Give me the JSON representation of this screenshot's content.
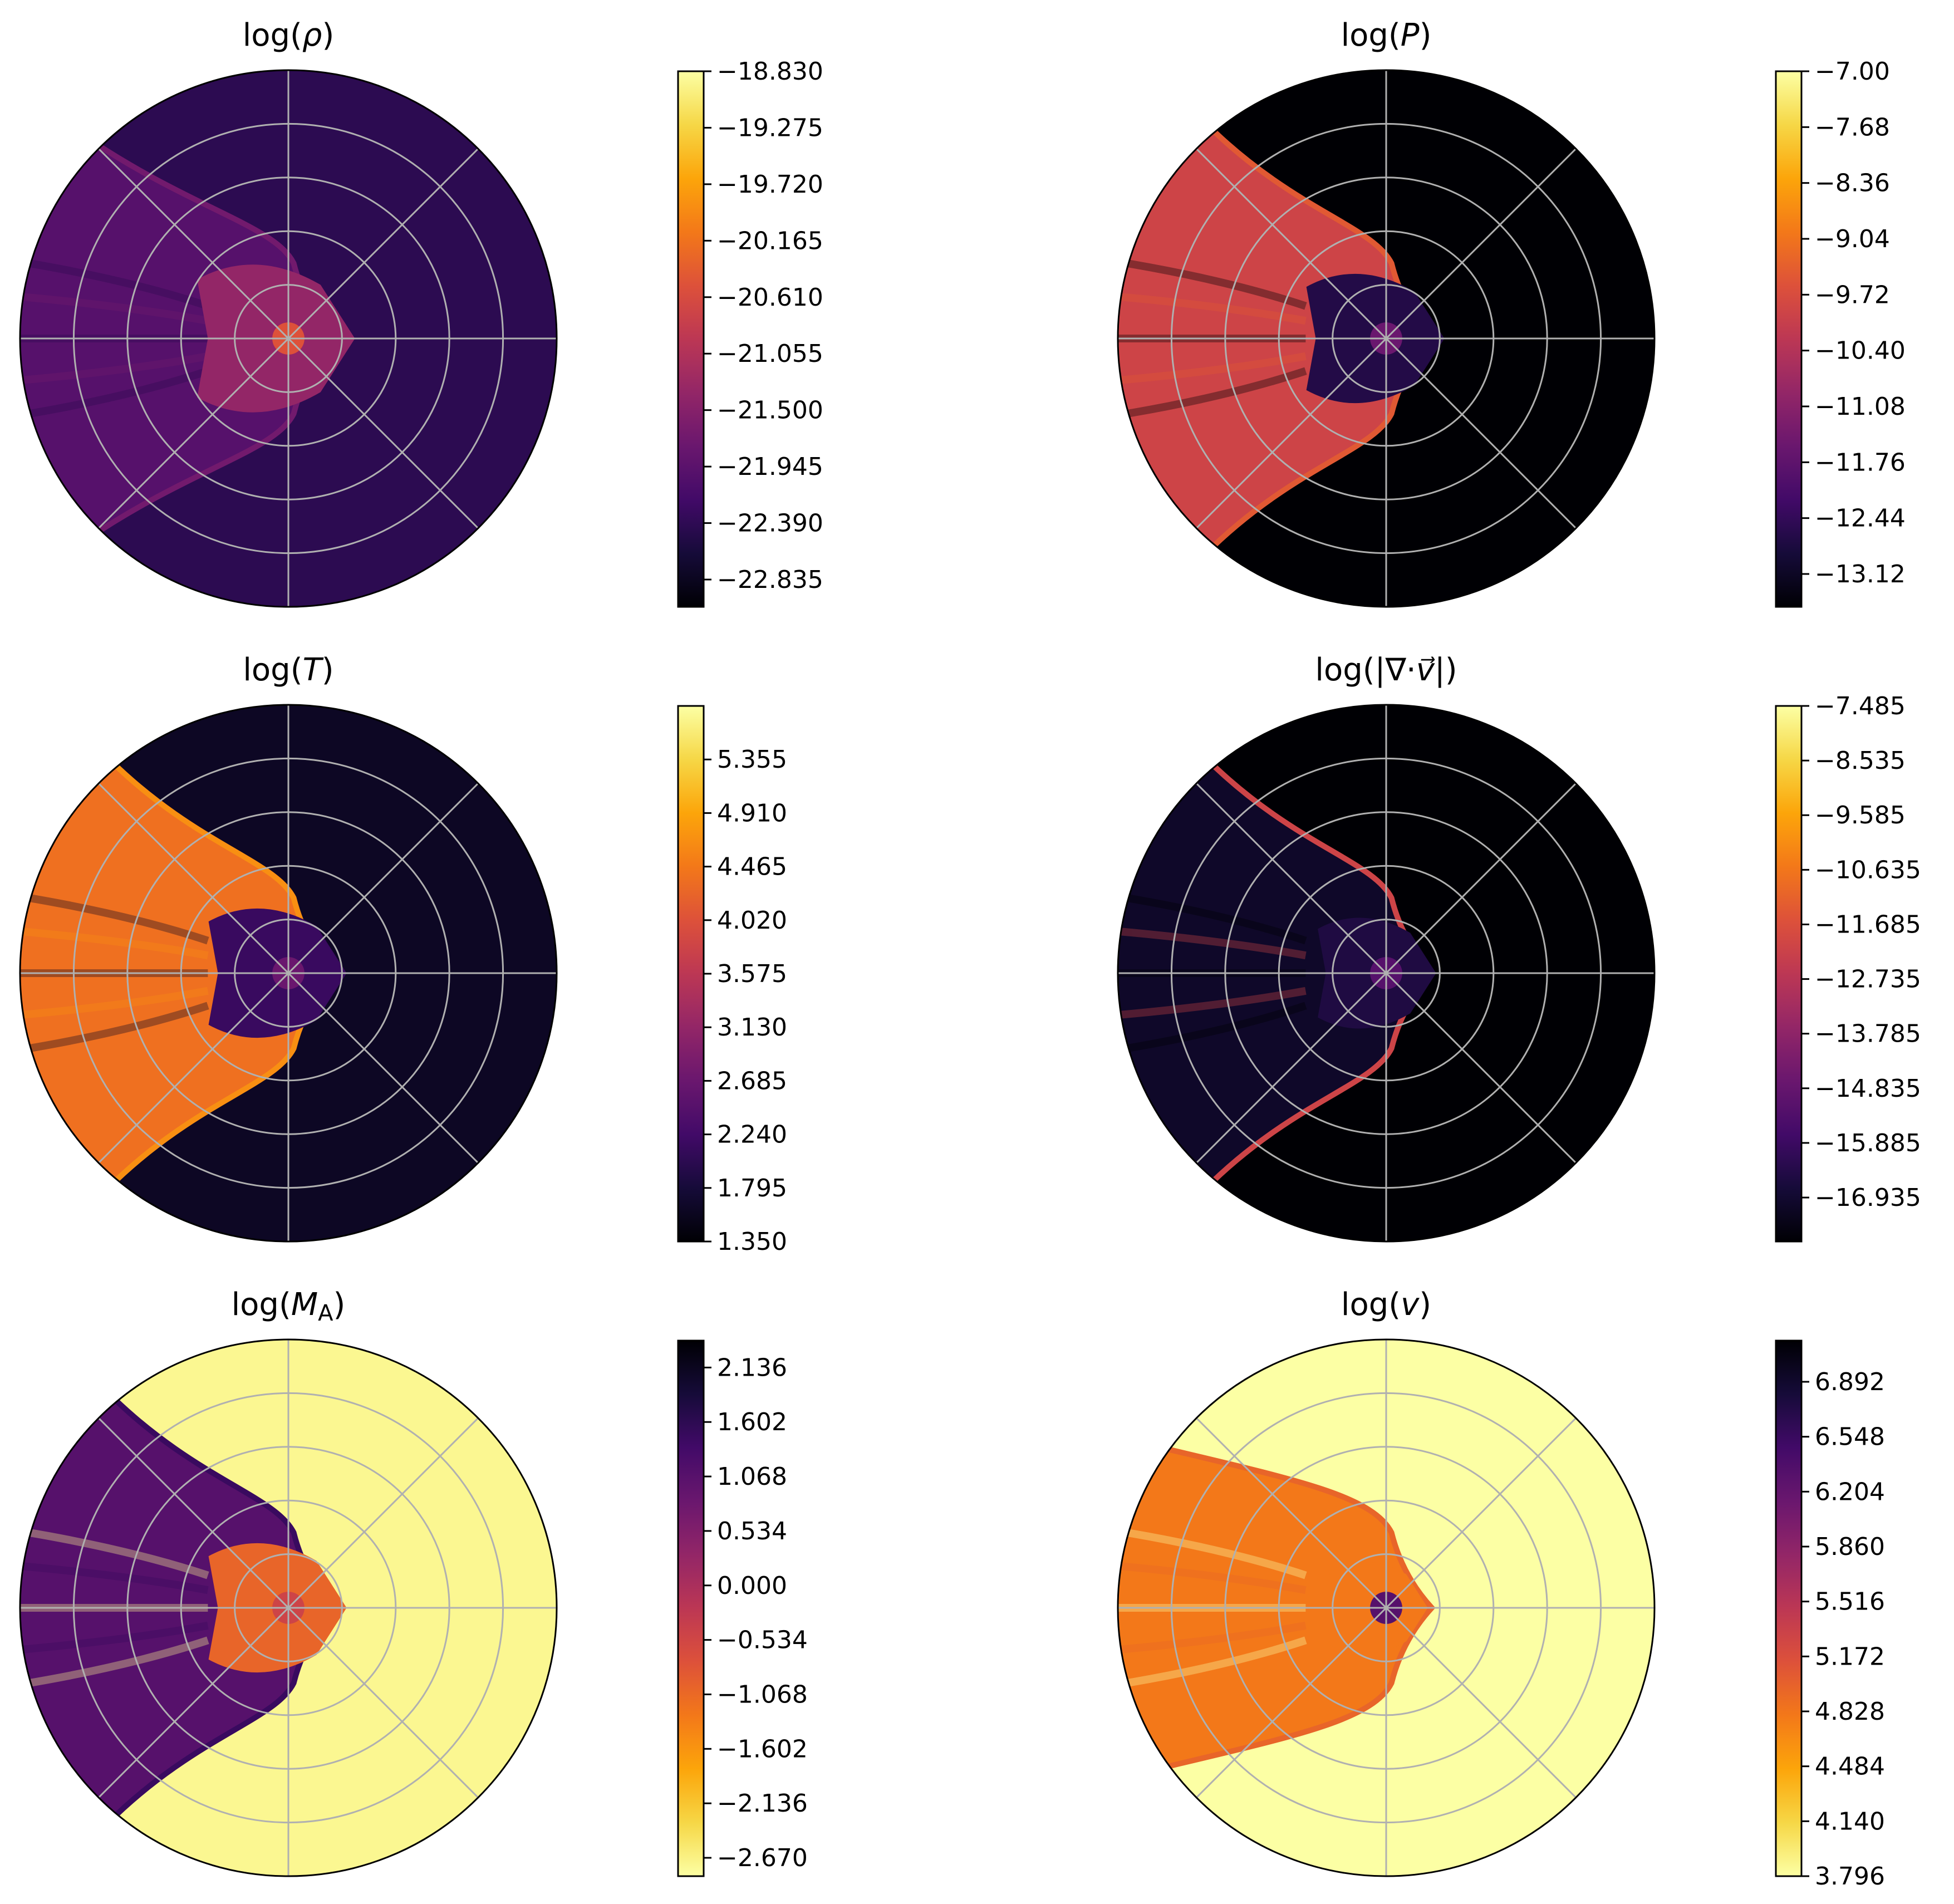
{
  "chart_data": [
    {
      "type": "heatmap",
      "projection": "polar",
      "title": "log(ρ)",
      "title_parts": {
        "pre": "log(",
        "sym": "ρ",
        "post": ")"
      },
      "colormap": "inferno",
      "colorbar": {
        "vmin": -23.05,
        "vmax": -18.83,
        "ticks": [
          -18.83,
          -19.275,
          -19.72,
          -20.165,
          -20.61,
          -21.055,
          -21.5,
          -21.945,
          -22.39,
          -22.835
        ],
        "tick_labels": [
          "−18.830",
          "−19.275",
          "−19.720",
          "−20.165",
          "−20.610",
          "−21.055",
          "−21.500",
          "−21.945",
          "−22.390",
          "−22.835"
        ],
        "reversed": false
      },
      "structure": {
        "background": 0.15,
        "cone": 0.25,
        "shell": 0.32,
        "cavity": 0.4,
        "core": 0.6,
        "halfangle_deg": 45,
        "nose": 0.17,
        "cavity_size": 0.4
      }
    },
    {
      "type": "heatmap",
      "projection": "polar",
      "title": "log(P)",
      "title_parts": {
        "pre": "log(",
        "sym": "P",
        "post": ")"
      },
      "colormap": "inferno",
      "colorbar": {
        "vmin": -13.52,
        "vmax": -7.0,
        "ticks": [
          -7.0,
          -7.68,
          -8.36,
          -9.04,
          -9.72,
          -10.4,
          -11.08,
          -11.76,
          -12.44,
          -13.12
        ],
        "tick_labels": [
          "−7.00",
          "−7.68",
          "−8.36",
          "−9.04",
          "−9.72",
          "−10.40",
          "−11.08",
          "−11.76",
          "−12.44",
          "−13.12"
        ],
        "reversed": false
      },
      "structure": {
        "background": 0.0,
        "cone": 0.55,
        "shell": 0.62,
        "cavity": 0.13,
        "core": 0.3,
        "halfangle_deg": 50,
        "nose": 0.17,
        "cavity_size": 0.35
      }
    },
    {
      "type": "heatmap",
      "projection": "polar",
      "title": "log(T)",
      "title_parts": {
        "pre": "log(",
        "sym": "T",
        "post": ")"
      },
      "colormap": "inferno",
      "colorbar": {
        "vmin": 1.35,
        "vmax": 5.8,
        "ticks": [
          5.355,
          4.91,
          4.465,
          4.02,
          3.575,
          3.13,
          2.685,
          2.24,
          1.795,
          1.35
        ],
        "tick_labels": [
          "5.355",
          "4.910",
          "4.465",
          "4.020",
          "3.575",
          "3.130",
          "2.685",
          "2.240",
          "1.795",
          "1.350"
        ],
        "reversed": false
      },
      "structure": {
        "background": 0.06,
        "cone": 0.68,
        "shell": 0.75,
        "cavity": 0.18,
        "core": 0.3,
        "halfangle_deg": 50,
        "nose": 0.17,
        "cavity_size": 0.35
      }
    },
    {
      "type": "heatmap",
      "projection": "polar",
      "title": "log(|∇·v⃗|)",
      "title_parts": {
        "pre": "log(|∇·",
        "sym": "v⃗",
        "post": "|)"
      },
      "colormap": "inferno",
      "colorbar": {
        "vmin": -17.78,
        "vmax": -7.485,
        "ticks": [
          -7.485,
          -8.535,
          -9.585,
          -10.635,
          -11.685,
          -12.735,
          -13.785,
          -14.835,
          -15.885,
          -16.935
        ],
        "tick_labels": [
          "−7.485",
          "−8.535",
          "−9.585",
          "−10.635",
          "−11.685",
          "−12.735",
          "−13.785",
          "−14.835",
          "−15.885",
          "−16.935"
        ],
        "reversed": false
      },
      "structure": {
        "background": 0.0,
        "cone": 0.07,
        "shell": 0.55,
        "cavity": 0.12,
        "core": 0.25,
        "halfangle_deg": 50,
        "nose": 0.17,
        "cavity_size": 0.3
      }
    },
    {
      "type": "heatmap",
      "projection": "polar",
      "title": "log(M_A)",
      "title_parts": {
        "pre": "log(",
        "sym": "M",
        "sub": "A",
        "post": ")"
      },
      "colormap": "inferno_r",
      "colorbar": {
        "vmin": -2.85,
        "vmax": 2.4,
        "ticks": [
          2.136,
          1.602,
          1.068,
          0.534,
          0.0,
          -0.534,
          -1.068,
          -1.602,
          -2.136,
          -2.67
        ],
        "tick_labels": [
          "2.136",
          "1.602",
          "1.068",
          "0.534",
          "0.000",
          "−0.534",
          "−1.068",
          "−1.602",
          "−2.136",
          "−2.670"
        ],
        "reversed": true
      },
      "structure": {
        "background": 0.02,
        "cone": 0.75,
        "shell": 0.82,
        "cavity": 0.35,
        "core": 0.45,
        "halfangle_deg": 50,
        "nose": 0.17,
        "cavity_size": 0.35
      }
    },
    {
      "type": "heatmap",
      "projection": "polar",
      "title": "log(v)",
      "title_parts": {
        "pre": "log(",
        "sym": "v",
        "post": ")"
      },
      "colormap": "inferno_r",
      "colorbar": {
        "vmin": 3.796,
        "vmax": 7.15,
        "ticks": [
          6.892,
          6.548,
          6.204,
          5.86,
          5.516,
          5.172,
          4.828,
          4.484,
          4.14,
          3.796
        ],
        "tick_labels": [
          "6.892",
          "6.548",
          "6.204",
          "5.860",
          "5.516",
          "5.172",
          "4.828",
          "4.484",
          "4.140",
          "3.796"
        ],
        "reversed": true
      },
      "structure": {
        "background": 0.0,
        "cone": 0.3,
        "shell": 0.35,
        "cavity": 0.3,
        "core": 0.75,
        "halfangle_deg": 35,
        "nose": 0.17,
        "cavity_size": 0.25
      }
    }
  ]
}
